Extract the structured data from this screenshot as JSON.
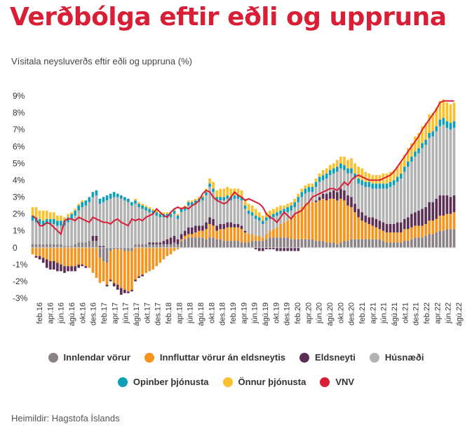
{
  "title": "Verðbólga eftir eðli og uppruna",
  "subtitle": "Vísitala neysluverðs eftir eðli og uppruna (%)",
  "source": "Heimildir: Hagstofa Íslands",
  "legend": [
    {
      "name": "Innlendar vörur",
      "color": "#8a8286"
    },
    {
      "name": "Innfluttar vörur án eldsneytis",
      "color": "#f7941d"
    },
    {
      "name": "Eldsneyti",
      "color": "#5e2f56"
    },
    {
      "name": "Húsnæði",
      "color": "#b2b2b2"
    },
    {
      "name": "Opinber þjónusta",
      "color": "#0f9fb8"
    },
    {
      "name": "Önnur þjónusta",
      "color": "#fbc02d"
    },
    {
      "name": "VNV",
      "color": "#d81f36"
    }
  ],
  "chart_data": {
    "type": "bar",
    "stacked": true,
    "ylim": [
      -3,
      9
    ],
    "yticks": [
      "9%",
      "8%",
      "7%",
      "6%",
      "5%",
      "4%",
      "3%",
      "2%",
      "1%",
      "0",
      "-1%",
      "-2%",
      "-3%"
    ],
    "tick_labels": [
      "feb.16",
      "apr.16",
      "jún.16",
      "ágú.16",
      "okt.16",
      "des.16",
      "feb.17",
      "apr.17",
      "jún.17",
      "ágú.17",
      "okt.17",
      "des.17",
      "feb.18",
      "apr.18",
      "jún.18",
      "ágú.18",
      "okt.18",
      "des.18",
      "feb.19",
      "apr.19",
      "jún.19",
      "ágú.19",
      "okt.19",
      "des.19",
      "feb.20",
      "apr.20",
      "jún.20",
      "ágú.20",
      "okt.20",
      "des.20",
      "feb.21",
      "apr.21",
      "jún.21",
      "ágú.21",
      "okt.21",
      "des.21",
      "feb.22",
      "apr.22",
      "jún.22",
      "ágú.22"
    ],
    "series": [
      {
        "name": "Innlendar vörur",
        "color": "#8a8286",
        "values": [
          0.2,
          0.2,
          0.2,
          0.2,
          0.2,
          0.2,
          0.2,
          0.2,
          0.2,
          0.1,
          0.1,
          0.1,
          0.2,
          0.3,
          0.3,
          0.3,
          0.4,
          0.4,
          0.4,
          -0.6,
          -0.8,
          -0.9,
          -0.2,
          -0.1,
          -0.1,
          -0.1,
          -0.2,
          -0.2,
          -0.2,
          0.2,
          0.2,
          0.2,
          0.2,
          0.2,
          0.2,
          0.2,
          0.2,
          0.2,
          0.2,
          0.2,
          0.3,
          0.2,
          0.4,
          0.5,
          0.6,
          0.6,
          0.6,
          0.6,
          0.6,
          0.5,
          0.6,
          0.6,
          0.5,
          0.5,
          0.4,
          0.4,
          0.4,
          0.4,
          0.4,
          0.3,
          0.3,
          0.3,
          0.4,
          0.4,
          0.4,
          0.4,
          0.5,
          0.6,
          0.6,
          0.6,
          0.6,
          0.6,
          0.6,
          0.5,
          0.5,
          0.5,
          0.5,
          0.5,
          0.5,
          0.5,
          0.4,
          0.4,
          0.4,
          0.3,
          0.3,
          0.3,
          0.2,
          0.3,
          0.4,
          0.4,
          0.5,
          0.5,
          0.5,
          0.5,
          0.5,
          0.5,
          0.5,
          0.5,
          0.5,
          0.4,
          0.3,
          0.3,
          0.3,
          0.3,
          0.3,
          0.4,
          0.4,
          0.5,
          0.6,
          0.6,
          0.6,
          0.7,
          0.8,
          0.8,
          0.9,
          1.0,
          1.0,
          1.1,
          1.1,
          1.1
        ]
      },
      {
        "name": "Innfluttar vörur án eldsneytis",
        "color": "#f7941d",
        "values": [
          -0.4,
          -0.5,
          -0.5,
          -0.6,
          -0.7,
          -0.8,
          -0.8,
          -0.9,
          -1.0,
          -1.1,
          -1.1,
          -1.1,
          -1.1,
          -1.0,
          -1.0,
          -1.1,
          -1.2,
          -1.5,
          -1.8,
          -1.5,
          -1.2,
          -1.3,
          -1.7,
          -2.0,
          -2.1,
          -2.3,
          -2.3,
          -2.4,
          -2.3,
          -1.9,
          -1.7,
          -1.6,
          -1.5,
          -1.4,
          -1.3,
          -1.1,
          -0.9,
          -0.7,
          -0.5,
          -0.4,
          -0.2,
          -0.1,
          0.1,
          0.2,
          0.2,
          0.2,
          0.3,
          0.4,
          0.4,
          0.6,
          0.8,
          0.7,
          0.5,
          0.6,
          0.7,
          0.8,
          0.8,
          0.8,
          0.8,
          0.8,
          0.6,
          0.5,
          0.4,
          0.3,
          0.3,
          0.2,
          0.3,
          0.4,
          0.5,
          0.6,
          0.8,
          0.9,
          1.0,
          1.2,
          1.4,
          1.7,
          1.9,
          2.1,
          2.2,
          2.2,
          2.3,
          2.4,
          2.5,
          2.5,
          2.6,
          2.6,
          2.6,
          2.6,
          2.4,
          2.1,
          1.9,
          1.6,
          1.3,
          1.1,
          1.0,
          0.9,
          0.8,
          0.7,
          0.6,
          0.6,
          0.6,
          0.6,
          0.6,
          0.6,
          0.6,
          0.7,
          0.7,
          0.7,
          0.7,
          0.7,
          0.7,
          0.7,
          0.8,
          0.8,
          0.8,
          0.9,
          0.9,
          0.9,
          0.9,
          1.0
        ]
      },
      {
        "name": "Eldsneyti",
        "color": "#5e2f56",
        "values": [
          0.0,
          -0.1,
          -0.2,
          -0.3,
          -0.5,
          -0.5,
          -0.5,
          -0.5,
          -0.4,
          -0.4,
          -0.3,
          -0.3,
          -0.3,
          -0.2,
          -0.1,
          -0.1,
          0.0,
          0.3,
          0.3,
          0.1,
          0.1,
          -0.1,
          -0.1,
          -0.2,
          -0.3,
          -0.4,
          -0.2,
          -0.1,
          -0.1,
          -0.1,
          -0.1,
          -0.1,
          0.0,
          0.1,
          0.1,
          0.1,
          0.1,
          0.2,
          0.3,
          0.4,
          0.4,
          0.3,
          0.3,
          0.3,
          0.4,
          0.4,
          0.4,
          0.3,
          0.3,
          0.4,
          0.4,
          0.4,
          0.3,
          0.3,
          0.3,
          0.3,
          0.3,
          0.2,
          0.2,
          0.2,
          0.1,
          0.0,
          0.0,
          -0.1,
          -0.2,
          -0.2,
          -0.1,
          -0.1,
          -0.1,
          -0.2,
          -0.2,
          -0.2,
          -0.2,
          -0.2,
          -0.2,
          -0.2,
          0.0,
          0.0,
          0.0,
          0.0,
          0.1,
          0.2,
          0.3,
          0.4,
          0.4,
          0.5,
          0.5,
          0.6,
          0.6,
          0.6,
          0.6,
          0.5,
          0.5,
          0.5,
          0.4,
          0.4,
          0.5,
          0.5,
          0.5,
          0.5,
          0.5,
          0.5,
          0.5,
          0.6,
          0.6,
          0.6,
          0.7,
          0.8,
          0.8,
          0.9,
          1.0,
          1.0,
          1.1,
          1.1,
          1.2,
          1.2,
          1.2,
          1.1,
          1.0,
          1.0
        ]
      },
      {
        "name": "Húsnæði",
        "color": "#b2b2b2",
        "values": [
          1.4,
          1.3,
          1.2,
          1.1,
          1.2,
          1.2,
          1.2,
          1.1,
          1.1,
          1.2,
          1.4,
          1.6,
          1.7,
          1.9,
          2.1,
          2.2,
          2.3,
          2.3,
          2.4,
          2.5,
          2.6,
          2.8,
          2.9,
          3.0,
          3.0,
          2.9,
          2.8,
          2.7,
          2.5,
          2.4,
          2.2,
          2.1,
          2.0,
          1.8,
          1.7,
          1.6,
          1.5,
          1.4,
          1.3,
          1.2,
          1.3,
          1.2,
          1.3,
          1.2,
          1.3,
          1.3,
          1.3,
          1.4,
          1.5,
          1.6,
          1.8,
          1.6,
          1.5,
          1.4,
          1.4,
          1.4,
          1.3,
          1.5,
          1.5,
          1.5,
          1.3,
          1.2,
          1.1,
          1.0,
          0.9,
          0.8,
          0.8,
          0.7,
          0.7,
          0.7,
          0.6,
          0.5,
          0.5,
          0.5,
          0.5,
          0.5,
          0.6,
          0.6,
          0.6,
          0.6,
          0.8,
          0.9,
          0.8,
          0.9,
          1.0,
          1.0,
          1.2,
          1.2,
          1.2,
          1.3,
          1.4,
          1.5,
          1.5,
          1.6,
          1.7,
          1.8,
          1.7,
          1.8,
          1.9,
          2.0,
          2.1,
          2.2,
          2.3,
          2.4,
          2.6,
          2.8,
          3.0,
          3.1,
          3.3,
          3.4,
          3.6,
          3.7,
          3.8,
          3.9,
          4.0,
          4.1,
          4.2,
          4.0,
          4.0,
          4.0
        ]
      },
      {
        "name": "Opinber þjónusta",
        "color": "#0f9fb8",
        "values": [
          0.3,
          0.3,
          0.3,
          0.3,
          0.3,
          0.3,
          0.3,
          0.3,
          0.3,
          0.3,
          0.3,
          0.3,
          0.3,
          0.3,
          0.3,
          0.3,
          0.3,
          0.3,
          0.3,
          0.3,
          0.3,
          0.3,
          0.3,
          0.3,
          0.2,
          0.2,
          0.2,
          0.2,
          0.2,
          0.2,
          0.2,
          0.2,
          0.2,
          0.2,
          0.2,
          0.2,
          0.2,
          0.2,
          0.2,
          0.2,
          0.2,
          0.2,
          0.2,
          0.2,
          0.2,
          0.2,
          0.2,
          0.2,
          0.2,
          0.2,
          0.2,
          0.2,
          0.2,
          0.2,
          0.2,
          0.2,
          0.2,
          0.2,
          0.2,
          0.2,
          0.2,
          0.2,
          0.2,
          0.2,
          0.2,
          0.2,
          0.2,
          0.2,
          0.2,
          0.2,
          0.2,
          0.3,
          0.3,
          0.3,
          0.3,
          0.3,
          0.3,
          0.3,
          0.3,
          0.3,
          0.3,
          0.3,
          0.3,
          0.3,
          0.3,
          0.3,
          0.3,
          0.3,
          0.3,
          0.3,
          0.3,
          0.3,
          0.3,
          0.3,
          0.3,
          0.3,
          0.3,
          0.3,
          0.3,
          0.3,
          0.3,
          0.3,
          0.3,
          0.3,
          0.3,
          0.3,
          0.3,
          0.3,
          0.3,
          0.3,
          0.3,
          0.3,
          0.3,
          0.3,
          0.3,
          0.4,
          0.4,
          0.4,
          0.4,
          0.4
        ]
      },
      {
        "name": "Önnur þjónusta",
        "color": "#fbc02d",
        "values": [
          0.5,
          0.6,
          0.5,
          0.6,
          0.5,
          0.4,
          0.4,
          0.3,
          0.3,
          0.2,
          0.2,
          0.1,
          0.1,
          0.1,
          0.1,
          0.0,
          0.0,
          0.0,
          0.0,
          0.0,
          0.0,
          0.0,
          0.0,
          0.0,
          0.0,
          0.0,
          0.0,
          0.0,
          0.0,
          0.1,
          0.1,
          0.1,
          0.1,
          0.1,
          0.1,
          0.1,
          0.1,
          0.1,
          0.1,
          0.1,
          0.1,
          0.1,
          0.1,
          0.1,
          0.1,
          0.1,
          0.1,
          0.1,
          0.1,
          0.2,
          0.3,
          0.4,
          0.4,
          0.5,
          0.5,
          0.5,
          0.5,
          0.4,
          0.4,
          0.4,
          0.4,
          0.4,
          0.4,
          0.4,
          0.3,
          0.3,
          0.3,
          0.3,
          0.3,
          0.3,
          0.3,
          0.2,
          0.2,
          0.2,
          0.2,
          0.2,
          0.2,
          0.2,
          0.2,
          0.2,
          0.2,
          0.2,
          0.3,
          0.3,
          0.3,
          0.3,
          0.4,
          0.4,
          0.5,
          0.5,
          0.6,
          0.6,
          0.7,
          0.7,
          0.6,
          0.5,
          0.5,
          0.5,
          0.5,
          0.6,
          0.6,
          0.6,
          0.6,
          0.6,
          0.7,
          0.7,
          0.8,
          0.8,
          0.9,
          0.9,
          1.0,
          1.0,
          1.1,
          1.1,
          1.1,
          1.1,
          1.1,
          1.1,
          1.1,
          1.1
        ]
      },
      {
        "name": "VNV",
        "color": "#d81f36",
        "type": "line",
        "values": [
          1.9,
          1.7,
          1.3,
          1.3,
          1.5,
          1.4,
          1.2,
          1.0,
          0.8,
          1.6,
          1.7,
          1.7,
          1.6,
          1.8,
          1.7,
          1.6,
          1.5,
          1.8,
          1.7,
          1.6,
          1.5,
          1.5,
          1.4,
          1.6,
          1.7,
          1.5,
          1.4,
          1.3,
          1.7,
          1.6,
          1.7,
          1.6,
          1.8,
          1.9,
          2.0,
          2.3,
          2.1,
          1.9,
          1.8,
          2.1,
          2.3,
          2.4,
          2.3,
          2.4,
          2.3,
          2.5,
          2.6,
          2.8,
          3.2,
          3.4,
          3.3,
          3.0,
          2.8,
          2.7,
          2.6,
          2.7,
          3.0,
          3.3,
          3.1,
          3.0,
          2.8,
          2.9,
          2.8,
          2.7,
          2.6,
          2.4,
          2.0,
          1.8,
          1.7,
          1.5,
          1.8,
          2.1,
          1.9,
          1.7,
          2.0,
          2.1,
          2.2,
          2.5,
          2.7,
          3.0,
          3.1,
          3.2,
          3.3,
          3.4,
          3.5,
          3.5,
          3.4,
          3.6,
          3.9,
          3.7,
          4.0,
          4.2,
          4.3,
          4.2,
          4.1,
          4.0,
          4.0,
          4.0,
          4.0,
          4.1,
          4.2,
          4.3,
          4.5,
          4.8,
          5.1,
          5.4,
          5.7,
          6.0,
          6.3,
          6.6,
          7.0,
          7.3,
          7.6,
          7.9,
          8.2,
          8.6,
          8.7,
          8.7,
          8.7,
          8.7
        ]
      }
    ]
  }
}
